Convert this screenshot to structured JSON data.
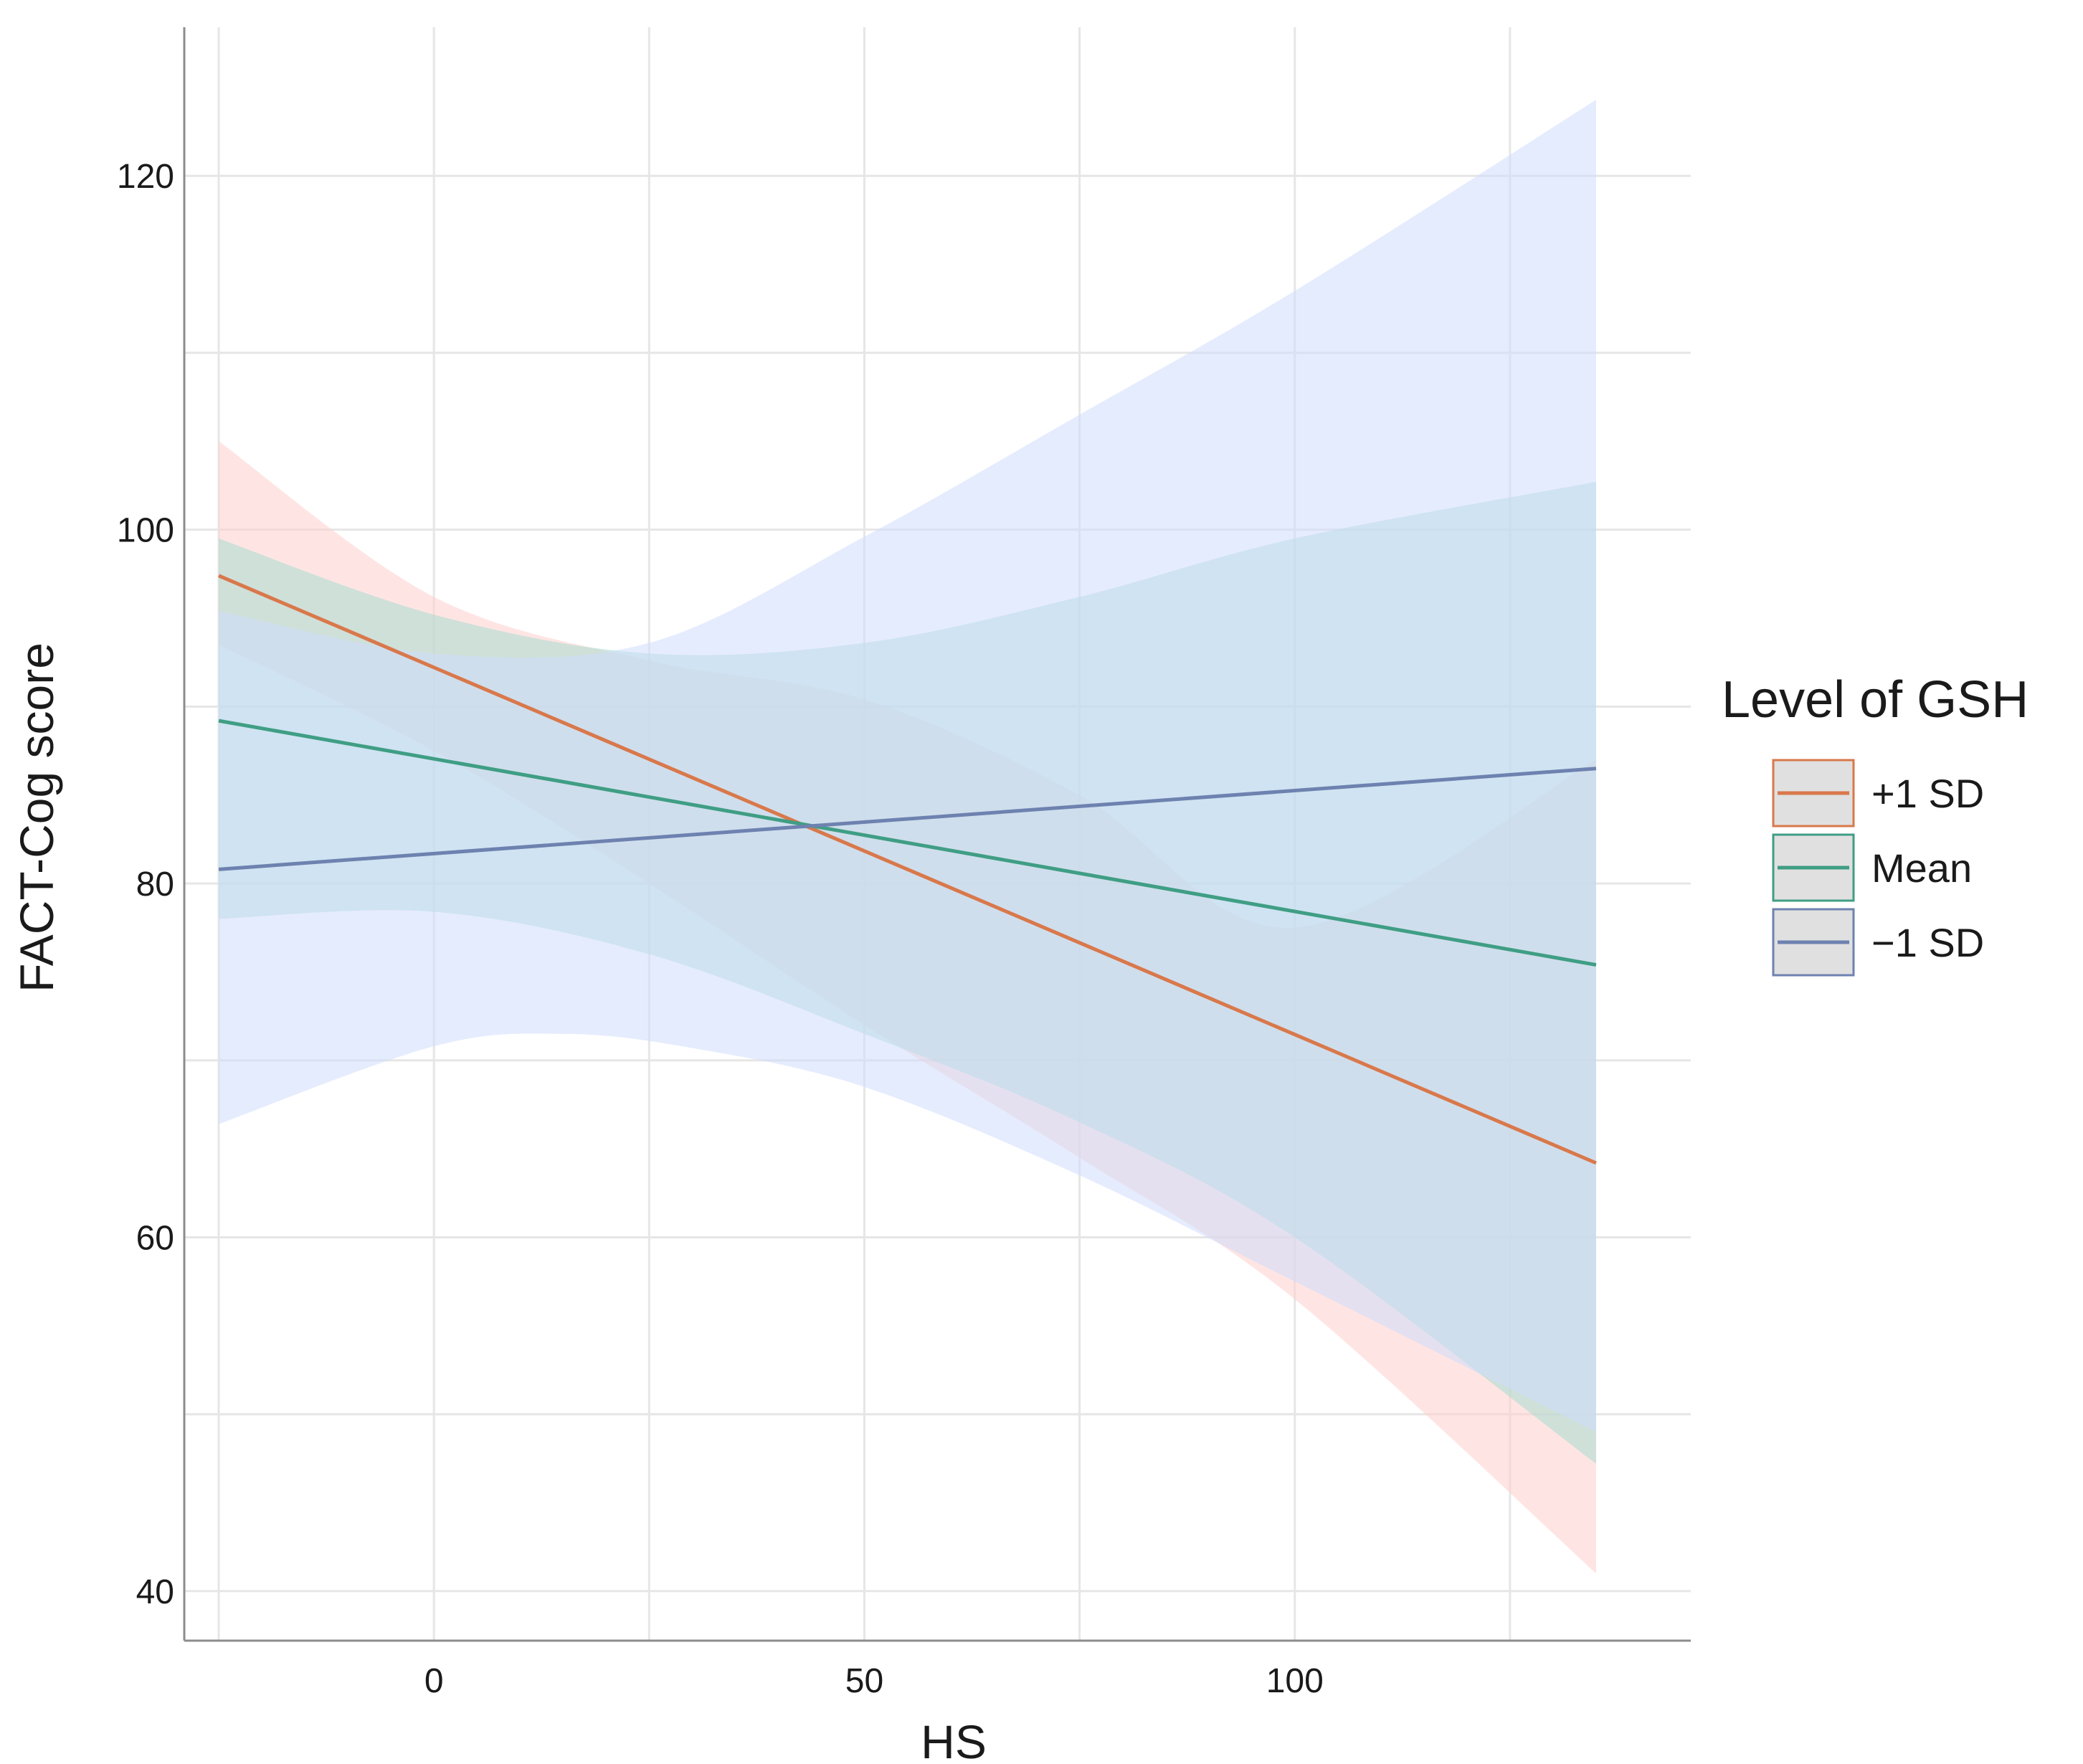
{
  "chart_data": {
    "type": "line",
    "title": "",
    "xlabel": "HS",
    "ylabel": "FACT-Cog score",
    "xlim": [
      -29,
      146
    ],
    "ylim": [
      37.2,
      128.4
    ],
    "x_ticks": [
      0,
      50,
      100
    ],
    "x_tick_labels": [
      "0",
      "50",
      "100"
    ],
    "x_minor_ticks": [
      -25,
      25,
      75,
      125
    ],
    "y_ticks": [
      40,
      60,
      80,
      100,
      120
    ],
    "y_tick_labels": [
      "40",
      "60",
      "80",
      "100",
      "120"
    ],
    "y_minor_ticks": [
      50,
      70,
      90,
      110
    ],
    "grid": true,
    "legend": {
      "title": "Level of GSH",
      "position": "right"
    },
    "series": [
      {
        "name": "+1 SD",
        "color": "#d9784b",
        "band_color": "#fdd0cc",
        "x": [
          -25,
          135
        ],
        "y": [
          97.4,
          64.2
        ],
        "ci_lower": [
          [
            -25,
            93.5
          ],
          [
            0,
            87.5
          ],
          [
            25,
            80.0
          ],
          [
            50,
            72.0
          ],
          [
            75,
            64.5
          ],
          [
            100,
            56.5
          ],
          [
            135,
            41.0
          ]
        ],
        "ci_upper": [
          [
            -25,
            105.0
          ],
          [
            0,
            96.2
          ],
          [
            25,
            92.6
          ],
          [
            50,
            90.4
          ],
          [
            75,
            85.0
          ],
          [
            100,
            77.5
          ],
          [
            135,
            87.0
          ]
        ]
      },
      {
        "name": "Mean",
        "color": "#3f9e84",
        "band_color": "#a8ddd2",
        "x": [
          -25,
          135
        ],
        "y": [
          89.2,
          75.4
        ],
        "ci_lower": [
          [
            -25,
            78.0
          ],
          [
            0,
            78.4
          ],
          [
            25,
            76.0
          ],
          [
            50,
            71.5
          ],
          [
            75,
            66.5
          ],
          [
            100,
            60.0
          ],
          [
            135,
            47.2
          ]
        ],
        "ci_upper": [
          [
            -25,
            99.5
          ],
          [
            0,
            95.2
          ],
          [
            25,
            93.0
          ],
          [
            50,
            93.6
          ],
          [
            75,
            96.2
          ],
          [
            100,
            99.5
          ],
          [
            135,
            102.7
          ]
        ]
      },
      {
        "name": "−1 SD",
        "color": "#6e82b0",
        "band_color": "#cfdcfb",
        "x": [
          -25,
          135
        ],
        "y": [
          80.8,
          86.5
        ],
        "ci_lower": [
          [
            -25,
            66.4
          ],
          [
            0,
            70.8
          ],
          [
            15,
            71.5
          ],
          [
            30,
            70.7
          ],
          [
            50,
            68.5
          ],
          [
            75,
            63.5
          ],
          [
            100,
            57.5
          ],
          [
            135,
            49.0
          ]
        ],
        "ci_upper": [
          [
            -25,
            95.4
          ],
          [
            0,
            93.0
          ],
          [
            25,
            93.6
          ],
          [
            50,
            99.6
          ],
          [
            75,
            106.5
          ],
          [
            100,
            113.5
          ],
          [
            135,
            124.3
          ]
        ]
      }
    ]
  }
}
